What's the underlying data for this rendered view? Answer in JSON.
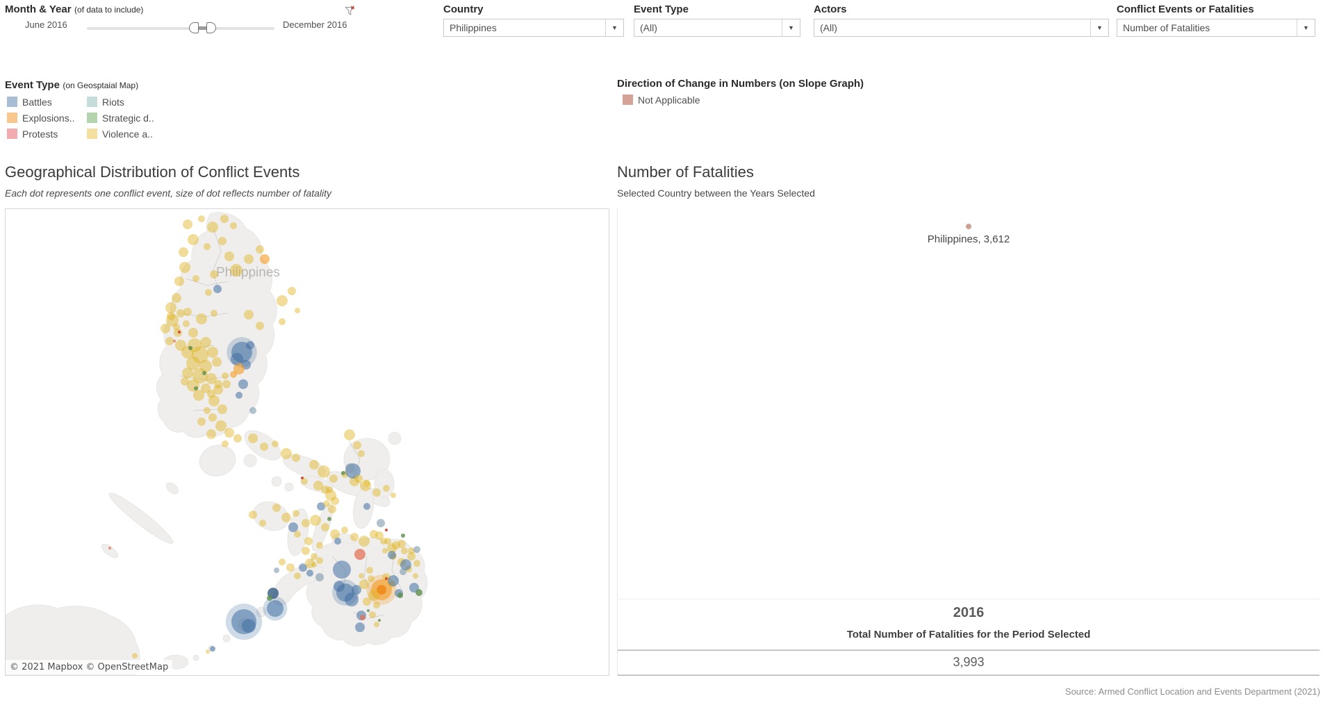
{
  "header": {
    "month_year": {
      "label": "Month & Year",
      "sublabel": "(of data to include)",
      "range_start": "June 2016",
      "range_end": "December 2016"
    },
    "country": {
      "label": "Country",
      "value": "Philippines"
    },
    "event_type": {
      "label": "Event Type",
      "value": "(All)"
    },
    "actors": {
      "label": "Actors",
      "value": "(All)"
    },
    "metric": {
      "label": "Conflict Events or Fatalities",
      "value": "Number of Fatalities"
    },
    "dropdown_arrow": "▼"
  },
  "legend_event_type": {
    "title": "Event Type",
    "subtitle": "(on Geosptaial Map)",
    "items": [
      {
        "label": "Battles",
        "color": "#a9bed4"
      },
      {
        "label": "Riots",
        "color": "#c6dcda"
      },
      {
        "label": "Explosions..",
        "color": "#f8c78e"
      },
      {
        "label": "Strategic d..",
        "color": "#b3d4ac"
      },
      {
        "label": "Protests",
        "color": "#f2abae"
      },
      {
        "label": "Violence a..",
        "color": "#f3df9f"
      }
    ]
  },
  "legend_direction": {
    "title": "Direction of Change in Numbers (on Slope Graph)",
    "items": [
      {
        "label": "Not Applicable",
        "color": "#d4a297"
      }
    ]
  },
  "map_panel": {
    "title": "Geographical Distribution of Conflict Events",
    "subtitle": "Each dot represents one conflict event, size of dot reflects number of fatality",
    "map_label": "Philippines",
    "attribution": "© 2021 Mapbox © OpenStreetMap"
  },
  "fatalities_panel": {
    "title": "Number of Fatalities",
    "subtitle": "Selected Country between the Years Selected",
    "point_label": "Philippines, 3,612",
    "point_color": "#cfa193",
    "year_label": "2016",
    "total_caption": "Total Number of Fatalities for the Period Selected",
    "total_value": "3,993"
  },
  "source_note": "Source: Armed Conflict Location and Events Department (2021)",
  "chart_data": [
    {
      "type": "scatter",
      "name": "geographical-distribution-of-conflict-events",
      "coordinate_space": "map-local pixels, 870x673 panel",
      "palette": {
        "y": {
          "fill": "#e0b41c",
          "opacity": 0.45,
          "category": "Violence against civilians"
        },
        "b": {
          "fill": "#3f6fa3",
          "opacity": 0.55,
          "category": "Battles"
        },
        "b2": {
          "fill": "#2d567f",
          "opacity": 0.78,
          "category": "Battles (dense)"
        },
        "o": {
          "fill": "#f59b23",
          "opacity": 0.6,
          "category": "Explosions / Remote violence"
        },
        "o2": {
          "fill": "#ee8413",
          "opacity": 0.8,
          "category": "Explosions core"
        },
        "t": {
          "fill": "#7d99ae",
          "opacity": 0.6,
          "category": "Riots"
        },
        "g": {
          "fill": "#5c8f4e",
          "opacity": 0.8,
          "category": "Strategic developments"
        },
        "s": {
          "fill": "#e4735a",
          "opacity": 0.75,
          "category": "Protests"
        },
        "r": {
          "fill": "#cc3d2e",
          "opacity": 0.9,
          "category": "Protests (small)"
        }
      },
      "dots": [
        [
          262,
          22,
          7
        ],
        [
          282,
          14,
          5
        ],
        [
          298,
          26,
          8
        ],
        [
          315,
          14,
          6
        ],
        [
          328,
          24,
          5
        ],
        [
          270,
          44,
          8
        ],
        [
          256,
          62,
          7
        ],
        [
          290,
          54,
          5
        ],
        [
          312,
          46,
          6
        ],
        [
          322,
          68,
          7
        ],
        [
          258,
          84,
          8
        ],
        [
          250,
          104,
          7
        ],
        [
          274,
          100,
          5
        ],
        [
          300,
          94,
          6
        ],
        [
          332,
          88,
          9
        ],
        [
          350,
          72,
          7
        ],
        [
          366,
          58,
          6
        ],
        [
          292,
          120,
          5
        ],
        [
          262,
          148,
          6
        ],
        [
          282,
          158,
          8
        ],
        [
          300,
          150,
          5
        ],
        [
          350,
          152,
          7
        ],
        [
          366,
          168,
          6
        ],
        [
          398,
          162,
          5
        ],
        [
          270,
          178,
          7
        ],
        [
          246,
          170,
          5
        ],
        [
          238,
          154,
          6
        ],
        [
          398,
          132,
          8
        ],
        [
          412,
          118,
          6
        ],
        [
          420,
          146,
          4
        ],
        [
          246,
          128,
          7
        ],
        [
          238,
          142,
          8
        ],
        [
          252,
          150,
          6
        ],
        [
          240,
          160,
          9
        ],
        [
          230,
          172,
          7
        ],
        [
          248,
          178,
          6
        ],
        [
          260,
          165,
          5
        ],
        [
          236,
          190,
          6
        ],
        [
          252,
          196,
          8
        ],
        [
          373,
          72,
          7,
          "o"
        ],
        [
          305,
          115,
          6,
          "b"
        ],
        [
          272,
          196,
          10
        ],
        [
          288,
          192,
          8
        ],
        [
          262,
          206,
          9
        ],
        [
          280,
          210,
          12
        ],
        [
          298,
          206,
          8
        ],
        [
          270,
          222,
          10
        ],
        [
          288,
          226,
          9
        ],
        [
          304,
          220,
          7
        ],
        [
          262,
          236,
          8
        ],
        [
          280,
          240,
          11
        ],
        [
          296,
          244,
          8
        ],
        [
          270,
          254,
          9
        ],
        [
          288,
          258,
          7
        ],
        [
          306,
          252,
          6
        ],
        [
          316,
          240,
          5
        ],
        [
          258,
          248,
          6
        ],
        [
          278,
          268,
          8
        ],
        [
          296,
          266,
          6
        ],
        [
          266,
          200,
          3,
          "g"
        ],
        [
          286,
          236,
          3,
          "g"
        ],
        [
          274,
          258,
          3,
          "g"
        ],
        [
          250,
          177,
          2,
          "r"
        ],
        [
          243,
          190,
          2,
          "s"
        ],
        [
          340,
          206,
          15,
          "b",
          1
        ],
        [
          333,
          216,
          9,
          "b"
        ],
        [
          346,
          224,
          7,
          "b"
        ],
        [
          352,
          196,
          6,
          "b"
        ],
        [
          336,
          230,
          8,
          "o"
        ],
        [
          328,
          238,
          5,
          "o"
        ],
        [
          300,
          276,
          8
        ],
        [
          312,
          288,
          7
        ],
        [
          298,
          300,
          6
        ],
        [
          310,
          312,
          8
        ],
        [
          322,
          322,
          7
        ],
        [
          334,
          330,
          6
        ],
        [
          316,
          338,
          5
        ],
        [
          290,
          290,
          5
        ],
        [
          282,
          306,
          6
        ],
        [
          296,
          324,
          7
        ],
        [
          306,
          260,
          7
        ],
        [
          318,
          252,
          6
        ],
        [
          342,
          252,
          7,
          "b"
        ],
        [
          336,
          268,
          5,
          "b"
        ],
        [
          356,
          290,
          5,
          "t"
        ],
        [
          356,
          330,
          7
        ],
        [
          372,
          342,
          6
        ],
        [
          388,
          338,
          5
        ],
        [
          404,
          352,
          8
        ],
        [
          418,
          358,
          6
        ],
        [
          444,
          368,
          7
        ],
        [
          458,
          378,
          9
        ],
        [
          472,
          388,
          6
        ],
        [
          488,
          382,
          5
        ],
        [
          502,
          392,
          7
        ],
        [
          518,
          398,
          8
        ],
        [
          534,
          408,
          6
        ],
        [
          548,
          402,
          5
        ],
        [
          558,
          412,
          4
        ],
        [
          430,
          392,
          5
        ],
        [
          450,
          398,
          7
        ],
        [
          466,
          404,
          5
        ],
        [
          495,
          325,
          8
        ],
        [
          506,
          340,
          6
        ],
        [
          512,
          352,
          5
        ],
        [
          454,
          428,
          6,
          "b"
        ],
        [
          520,
          428,
          5,
          "b"
        ],
        [
          500,
          377,
          11,
          "b"
        ],
        [
          496,
          373,
          7,
          "t"
        ],
        [
          508,
          388,
          6
        ],
        [
          520,
          395,
          5
        ],
        [
          486,
          380,
          3,
          "g"
        ],
        [
          390,
          430,
          6
        ],
        [
          404,
          444,
          7
        ],
        [
          418,
          438,
          5
        ],
        [
          432,
          452,
          6
        ],
        [
          446,
          448,
          8
        ],
        [
          460,
          458,
          6
        ],
        [
          474,
          468,
          7
        ],
        [
          488,
          462,
          5
        ],
        [
          502,
          472,
          6
        ],
        [
          516,
          478,
          8
        ],
        [
          530,
          468,
          6
        ],
        [
          544,
          478,
          5
        ],
        [
          556,
          488,
          7
        ],
        [
          570,
          482,
          6
        ],
        [
          584,
          492,
          5
        ],
        [
          420,
          468,
          5
        ],
        [
          436,
          478,
          6
        ],
        [
          452,
          484,
          5
        ],
        [
          370,
          452,
          5
        ],
        [
          356,
          440,
          6
        ],
        [
          460,
          404,
          6
        ],
        [
          468,
          412,
          8
        ],
        [
          474,
          420,
          6
        ],
        [
          462,
          424,
          5
        ],
        [
          470,
          432,
          6
        ],
        [
          414,
          458,
          7,
          "b"
        ],
        [
          478,
          478,
          5,
          "b"
        ],
        [
          540,
          452,
          6,
          "t"
        ],
        [
          466,
          446,
          3,
          "g"
        ],
        [
          572,
          470,
          3,
          "g"
        ],
        [
          427,
          387,
          2,
          "r"
        ],
        [
          538,
          470,
          6
        ],
        [
          550,
          478,
          5
        ],
        [
          562,
          484,
          6
        ],
        [
          574,
          492,
          5
        ],
        [
          584,
          500,
          6
        ],
        [
          592,
          510,
          5
        ],
        [
          546,
          492,
          4
        ],
        [
          558,
          500,
          5
        ],
        [
          570,
          508,
          6
        ],
        [
          580,
          518,
          5
        ],
        [
          590,
          528,
          4
        ],
        [
          556,
          498,
          6,
          "b"
        ],
        [
          576,
          512,
          8,
          "b"
        ],
        [
          592,
          490,
          5,
          "t"
        ],
        [
          548,
          462,
          2,
          "r"
        ],
        [
          484,
          519,
          13,
          "b"
        ],
        [
          510,
          497,
          8,
          "s"
        ],
        [
          489,
          552,
          13,
          "b",
          1
        ],
        [
          498,
          562,
          10,
          "b"
        ],
        [
          480,
          543,
          8,
          "b"
        ],
        [
          505,
          548,
          7,
          "b"
        ],
        [
          541,
          548,
          15,
          "o",
          1
        ],
        [
          541,
          548,
          7,
          "o2"
        ],
        [
          516,
          540,
          7
        ],
        [
          526,
          532,
          5
        ],
        [
          530,
          556,
          8
        ],
        [
          520,
          565,
          6
        ],
        [
          534,
          570,
          5
        ],
        [
          512,
          528,
          4
        ],
        [
          548,
          530,
          6
        ],
        [
          556,
          540,
          5
        ],
        [
          524,
          520,
          5
        ],
        [
          558,
          535,
          8,
          "b"
        ],
        [
          566,
          553,
          6,
          "b"
        ],
        [
          572,
          522,
          5,
          "t"
        ],
        [
          588,
          545,
          7,
          "b"
        ],
        [
          512,
          585,
          7,
          "b"
        ],
        [
          510,
          602,
          7,
          "b"
        ],
        [
          514,
          588,
          4,
          "s"
        ],
        [
          568,
          556,
          4,
          "g"
        ],
        [
          548,
          532,
          2,
          "r"
        ],
        [
          522,
          578,
          2,
          "g"
        ],
        [
          538,
          592,
          2,
          "g"
        ],
        [
          528,
          584,
          5
        ],
        [
          534,
          598,
          4
        ],
        [
          595,
          552,
          5,
          "g"
        ],
        [
          428,
          516,
          6,
          "b"
        ],
        [
          438,
          524,
          5,
          "b"
        ],
        [
          452,
          530,
          6,
          "t"
        ],
        [
          398,
          508,
          5
        ],
        [
          410,
          516,
          6
        ],
        [
          420,
          528,
          5
        ],
        [
          444,
          512,
          4
        ],
        [
          390,
          520,
          4,
          "t"
        ],
        [
          432,
          492,
          6
        ],
        [
          444,
          500,
          5
        ],
        [
          438,
          510,
          7
        ],
        [
          452,
          506,
          5
        ],
        [
          388,
          575,
          12,
          "b",
          1
        ],
        [
          385,
          553,
          8,
          "b2"
        ],
        [
          380,
          560,
          4,
          "g"
        ],
        [
          343,
          594,
          18,
          "b",
          1
        ],
        [
          350,
          600,
          10,
          "b"
        ],
        [
          298,
          633,
          4,
          "b"
        ],
        [
          291,
          637,
          3
        ],
        [
          186,
          643,
          4
        ],
        [
          150,
          488,
          2,
          "s"
        ]
      ]
    },
    {
      "type": "slope",
      "name": "number-of-fatalities-by-year",
      "x": [
        "2016"
      ],
      "series": [
        {
          "name": "Philippines",
          "values": [
            3612
          ]
        }
      ],
      "total_for_period": 3993,
      "point_color": "#cfa193",
      "direction_of_change": "Not Applicable"
    }
  ]
}
